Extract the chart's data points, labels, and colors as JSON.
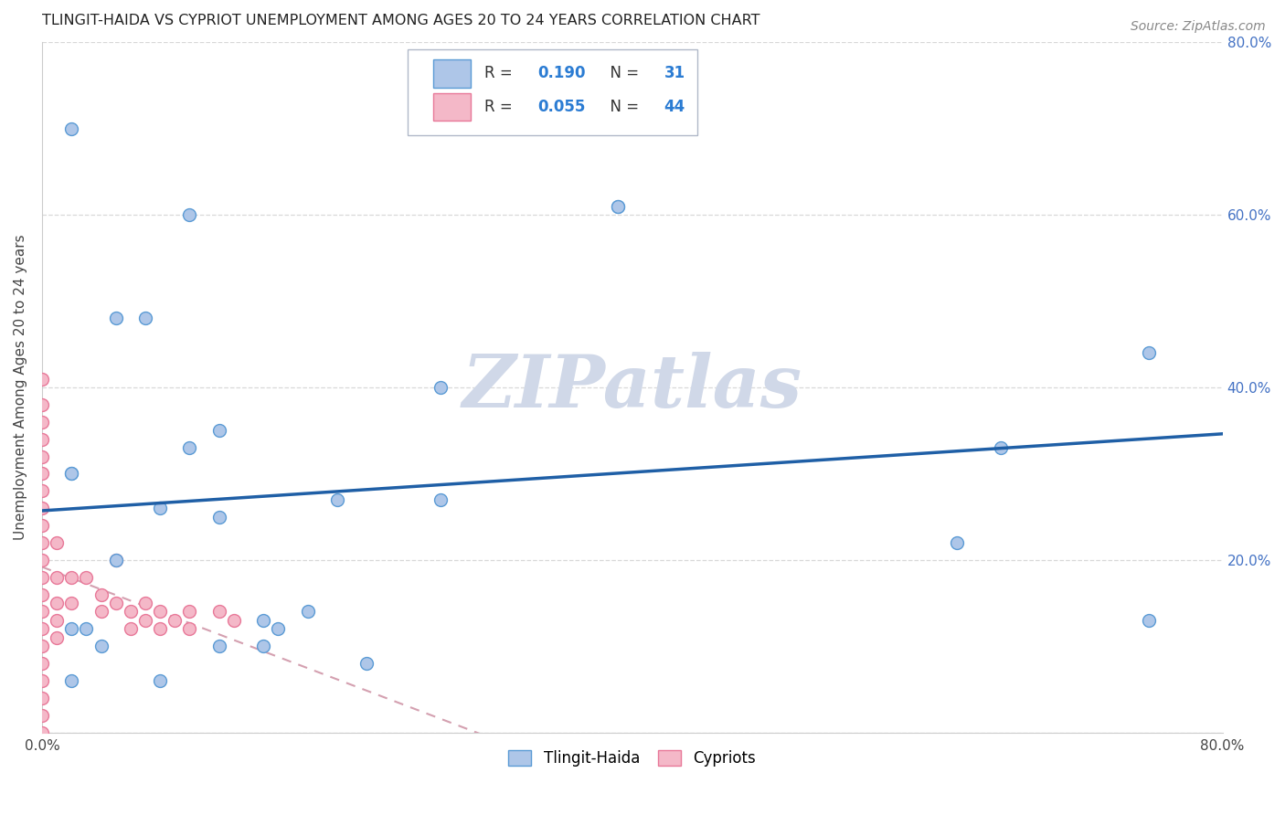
{
  "title": "TLINGIT-HAIDA VS CYPRIOT UNEMPLOYMENT AMONG AGES 20 TO 24 YEARS CORRELATION CHART",
  "source": "Source: ZipAtlas.com",
  "ylabel": "Unemployment Among Ages 20 to 24 years",
  "xlim": [
    0.0,
    0.8
  ],
  "ylim": [
    0.0,
    0.8
  ],
  "xticks": [
    0.0,
    0.1,
    0.2,
    0.3,
    0.4,
    0.5,
    0.6,
    0.7,
    0.8
  ],
  "xticklabels": [
    "0.0%",
    "",
    "",
    "",
    "",
    "",
    "",
    "",
    "80.0%"
  ],
  "yticks": [
    0.0,
    0.2,
    0.4,
    0.6,
    0.8
  ],
  "yticklabels_right": [
    "",
    "20.0%",
    "40.0%",
    "60.0%",
    "80.0%"
  ],
  "tlingit_color": "#aec6e8",
  "tlingit_edge": "#5b9bd5",
  "cypriot_color": "#f4b8c8",
  "cypriot_edge": "#e87999",
  "trendline_tlingit_color": "#1f5fa6",
  "trendline_cypriot_color": "#d4a0b0",
  "R_tlingit": 0.19,
  "N_tlingit": 31,
  "R_cypriot": 0.055,
  "N_cypriot": 44,
  "tlingit_x": [
    0.02,
    0.05,
    0.1,
    0.27,
    0.39,
    0.39,
    0.02,
    0.02,
    0.05,
    0.07,
    0.1,
    0.12,
    0.27,
    0.15,
    0.16,
    0.2,
    0.22,
    0.75,
    0.65,
    0.62,
    0.75,
    0.02,
    0.03,
    0.04,
    0.02,
    0.08,
    0.12,
    0.15,
    0.12,
    0.18,
    0.08
  ],
  "tlingit_y": [
    0.7,
    0.48,
    0.6,
    0.4,
    0.61,
    0.61,
    0.3,
    0.3,
    0.2,
    0.48,
    0.33,
    0.35,
    0.27,
    0.13,
    0.12,
    0.27,
    0.08,
    0.44,
    0.33,
    0.22,
    0.13,
    0.12,
    0.12,
    0.1,
    0.06,
    0.06,
    0.1,
    0.1,
    0.25,
    0.14,
    0.26
  ],
  "cypriot_x": [
    0.0,
    0.0,
    0.0,
    0.0,
    0.0,
    0.0,
    0.0,
    0.0,
    0.0,
    0.0,
    0.0,
    0.0,
    0.0,
    0.0,
    0.0,
    0.0,
    0.0,
    0.0,
    0.0,
    0.0,
    0.0,
    0.01,
    0.01,
    0.01,
    0.01,
    0.01,
    0.02,
    0.02,
    0.03,
    0.04,
    0.04,
    0.05,
    0.05,
    0.06,
    0.06,
    0.07,
    0.07,
    0.08,
    0.08,
    0.09,
    0.1,
    0.1,
    0.12,
    0.13
  ],
  "cypriot_y": [
    0.0,
    0.02,
    0.04,
    0.06,
    0.08,
    0.1,
    0.12,
    0.14,
    0.16,
    0.18,
    0.2,
    0.22,
    0.24,
    0.26,
    0.28,
    0.3,
    0.32,
    0.34,
    0.36,
    0.38,
    0.41,
    0.22,
    0.18,
    0.15,
    0.13,
    0.11,
    0.18,
    0.15,
    0.18,
    0.16,
    0.14,
    0.2,
    0.15,
    0.14,
    0.12,
    0.15,
    0.13,
    0.14,
    0.12,
    0.13,
    0.14,
    0.12,
    0.14,
    0.13
  ],
  "background_color": "#ffffff",
  "grid_color": "#d8d8d8",
  "watermark": "ZIPatlas",
  "watermark_color": "#d0d8e8",
  "marker_size": 100
}
